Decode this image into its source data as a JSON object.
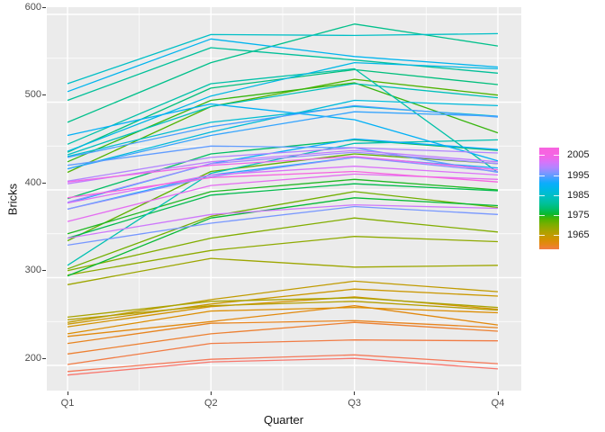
{
  "axes": {
    "x": {
      "label": "Quarter",
      "ticks": [
        "Q1",
        "Q2",
        "Q3",
        "Q4"
      ]
    },
    "y": {
      "label": "Bricks",
      "ticks": [
        "200",
        "300",
        "400",
        "500",
        "600"
      ]
    }
  },
  "legend": {
    "tick_labels": [
      "2005",
      "1995",
      "1985",
      "1975",
      "1965"
    ],
    "tick_years": [
      2005,
      1995,
      1985,
      1975,
      1965
    ],
    "year_top": 2009,
    "year_bottom": 1958
  },
  "colors": {
    "panel_bg": "#ebebeb",
    "grid": "#ffffff",
    "tick_text": "#4d4d4d",
    "axis_title_text": "#141414",
    "legend_text": "#1a1a1a",
    "palette_year_min": 1956,
    "palette_year_max": 2005,
    "palette_anchors": [
      "#f8766d",
      "#ee7f33",
      "#de8c00",
      "#c49a00",
      "#a3a500",
      "#7cae00",
      "#4ab400",
      "#00ba38",
      "#00bf7d",
      "#00c1a7",
      "#00bfc4",
      "#00b9e3",
      "#00aefb",
      "#3ea2ff",
      "#7f96ff",
      "#b783ff",
      "#dc71f9",
      "#f763e0"
    ]
  },
  "chart_data": {
    "type": "line",
    "x": [
      "Q1",
      "Q2",
      "Q3",
      "Q4"
    ],
    "xlabel": "Quarter",
    "ylabel": "Bricks",
    "ylim": [
      171,
      608
    ],
    "y_major": [
      200,
      300,
      400,
      500,
      600
    ],
    "y_minor": [
      250,
      350,
      450,
      550
    ],
    "grid": true,
    "legend_position": "right",
    "color_mapped_to": "Year",
    "series": [
      {
        "name": "1956",
        "year": 1956,
        "values": [
          189,
          204,
          208,
          196
        ]
      },
      {
        "name": "1957",
        "year": 1957,
        "values": [
          193,
          207,
          212,
          202
        ]
      },
      {
        "name": "1958",
        "year": 1958,
        "values": [
          201,
          225,
          229,
          228
        ]
      },
      {
        "name": "1959",
        "year": 1959,
        "values": [
          213,
          236,
          249,
          239
        ]
      },
      {
        "name": "1960",
        "year": 1960,
        "values": [
          225,
          248,
          251,
          243
        ]
      },
      {
        "name": "1961",
        "year": 1961,
        "values": [
          233,
          250,
          268,
          246
        ]
      },
      {
        "name": "1962",
        "year": 1962,
        "values": [
          236,
          262,
          266,
          260
        ]
      },
      {
        "name": "1963",
        "year": 1963,
        "values": [
          244,
          267,
          278,
          264
        ]
      },
      {
        "name": "1964",
        "year": 1964,
        "values": [
          247,
          270,
          287,
          279
        ]
      },
      {
        "name": "1965",
        "year": 1965,
        "values": [
          249,
          275,
          296,
          284
        ]
      },
      {
        "name": "1966",
        "year": 1966,
        "values": [
          252,
          268,
          273,
          263
        ]
      },
      {
        "name": "1967",
        "year": 1967,
        "values": [
          255,
          273,
          277,
          266
        ]
      },
      {
        "name": "1968",
        "year": 1968,
        "values": [
          292,
          322,
          312,
          314
        ]
      },
      {
        "name": "1969",
        "year": 1969,
        "values": [
          303,
          331,
          347,
          341
        ]
      },
      {
        "name": "1970",
        "year": 1970,
        "values": [
          308,
          345,
          368,
          352
        ]
      },
      {
        "name": "1971",
        "year": 1971,
        "values": [
          310,
          370,
          398,
          380
        ]
      },
      {
        "name": "1972",
        "year": 1972,
        "values": [
          342,
          421,
          441,
          430
        ]
      },
      {
        "name": "1973",
        "year": 1973,
        "values": [
          420,
          495,
          526,
          508
        ]
      },
      {
        "name": "1974",
        "year": 1974,
        "values": [
          432,
          502,
          522,
          465
        ]
      },
      {
        "name": "1975",
        "year": 1975,
        "values": [
          350,
          398,
          412,
          400
        ]
      },
      {
        "name": "1976",
        "year": 1976,
        "values": [
          302,
          368,
          391,
          382
        ]
      },
      {
        "name": "1977",
        "year": 1977,
        "values": [
          345,
          394,
          407,
          399
        ]
      },
      {
        "name": "1978",
        "year": 1978,
        "values": [
          390,
          441,
          457,
          445
        ]
      },
      {
        "name": "1979",
        "year": 1979,
        "values": [
          443,
          516,
          537,
          520
        ]
      },
      {
        "name": "1980",
        "year": 1980,
        "values": [
          477,
          545,
          589,
          564
        ]
      },
      {
        "name": "1981",
        "year": 1981,
        "values": [
          502,
          562,
          548,
          533
        ]
      },
      {
        "name": "1982",
        "year": 1982,
        "values": [
          452,
          521,
          538,
          420
        ]
      },
      {
        "name": "1983",
        "year": 1983,
        "values": [
          314,
          419,
          453,
          457
        ]
      },
      {
        "name": "1984",
        "year": 1984,
        "values": [
          440,
          495,
          521,
          505
        ]
      },
      {
        "name": "1985",
        "year": 1985,
        "values": [
          521,
          577,
          576,
          578
        ]
      },
      {
        "name": "1986",
        "year": 1986,
        "values": [
          438,
          477,
          495,
          484
        ]
      },
      {
        "name": "1987",
        "year": 1987,
        "values": [
          424,
          466,
          502,
          496
        ]
      },
      {
        "name": "1988",
        "year": 1988,
        "values": [
          444,
          507,
          545,
          538
        ]
      },
      {
        "name": "1989",
        "year": 1989,
        "values": [
          512,
          572,
          552,
          540
        ]
      },
      {
        "name": "1990",
        "year": 1990,
        "values": [
          462,
          498,
          480,
          433
        ]
      },
      {
        "name": "1991",
        "year": 1991,
        "values": [
          385,
          430,
          458,
          446
        ]
      },
      {
        "name": "1992",
        "year": 1992,
        "values": [
          378,
          417,
          437,
          425
        ]
      },
      {
        "name": "1993",
        "year": 1993,
        "values": [
          424,
          462,
          489,
          484
        ]
      },
      {
        "name": "1994",
        "year": 1994,
        "values": [
          437,
          472,
          496,
          483
        ]
      },
      {
        "name": "1995",
        "year": 1995,
        "values": [
          428,
          450,
          448,
          420
        ]
      },
      {
        "name": "1996",
        "year": 1996,
        "values": [
          337,
          362,
          381,
          372
        ]
      },
      {
        "name": "1997",
        "year": 1997,
        "values": [
          378,
          415,
          437,
          421
        ]
      },
      {
        "name": "1998",
        "year": 1998,
        "values": [
          386,
          430,
          443,
          430
        ]
      },
      {
        "name": "1999",
        "year": 1999,
        "values": [
          410,
          437,
          448,
          442
        ]
      },
      {
        "name": "2000",
        "year": 2000,
        "values": [
          407,
          432,
          445,
          432
        ]
      },
      {
        "name": "2001",
        "year": 2001,
        "values": [
          345,
          372,
          383,
          379
        ]
      },
      {
        "name": "2002",
        "year": 2002,
        "values": [
          385,
          417,
          427,
          417
        ]
      },
      {
        "name": "2003",
        "year": 2003,
        "values": [
          364,
          405,
          418,
          412
        ]
      },
      {
        "name": "2004",
        "year": 2004,
        "values": [
          409,
          428,
          438,
          423
        ]
      },
      {
        "name": "2005",
        "year": 2005,
        "values": [
          391,
          414,
          421,
          409
        ]
      }
    ]
  }
}
